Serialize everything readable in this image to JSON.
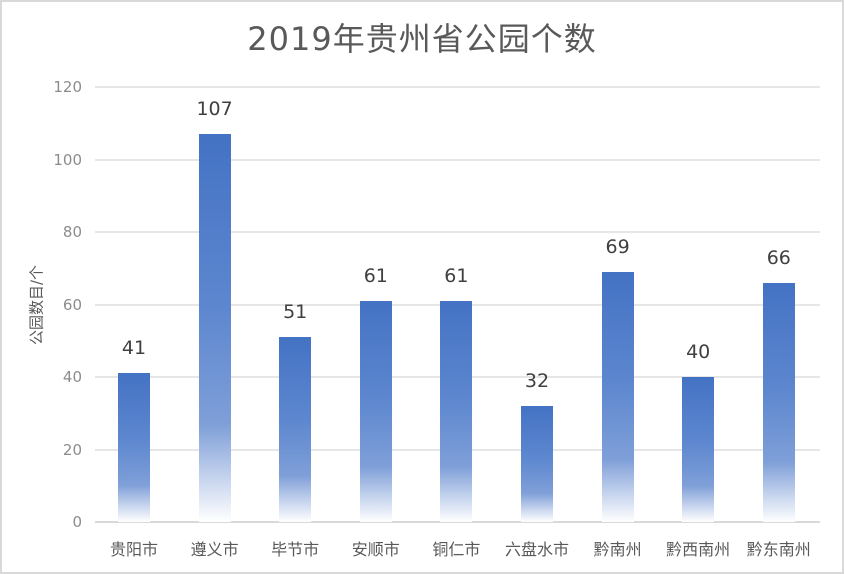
{
  "chart_data": {
    "type": "bar",
    "title": "2019年贵州省公园个数",
    "xlabel": "",
    "ylabel": "公园数目/个",
    "categories": [
      "贵阳市",
      "遵义市",
      "毕节市",
      "安顺市",
      "铜仁市",
      "六盘水市",
      "黔南州",
      "黔西南州",
      "黔东南州"
    ],
    "values": [
      41,
      107,
      51,
      61,
      61,
      32,
      69,
      40,
      66
    ],
    "ylim": [
      0,
      120
    ],
    "yticks": [
      0,
      20,
      40,
      60,
      80,
      100,
      120
    ],
    "grid": true,
    "legend": null,
    "data_labels": true,
    "bar_color": "#4472c4",
    "bar_fill": "gradient-to-white"
  },
  "title": "2019年贵州省公园个数",
  "ylabel": "公园数目/个"
}
